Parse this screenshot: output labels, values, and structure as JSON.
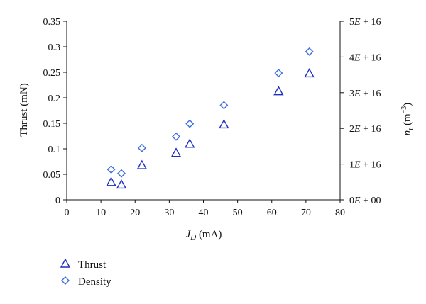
{
  "chart_data": {
    "type": "scatter",
    "x_axis": {
      "label_main": "J",
      "label_sub": "D",
      "label_rest": " (mA)",
      "range": [
        0,
        80
      ],
      "ticks": [
        "0",
        "10",
        "20",
        "30",
        "40",
        "50",
        "60",
        "70",
        "80"
      ]
    },
    "y_axis_left": {
      "label": "Thrust (mN)",
      "range": [
        0,
        0.35
      ],
      "ticks": [
        "0",
        "0.05",
        "0.1",
        "0.15",
        "0.2",
        "0.25",
        "0.3",
        "0.35"
      ]
    },
    "y_axis_right": {
      "label_main": "n",
      "label_sub": "i",
      "label_unit": " (m",
      "label_sup": "−3",
      "label_close": ")",
      "range": [
        0,
        5e+16
      ],
      "ticks": [
        "0E + 00",
        "1E + 16",
        "2E + 16",
        "3E + 16",
        "4E + 16",
        "5E + 16"
      ]
    },
    "series": [
      {
        "name": "Thrust",
        "axis": "left",
        "marker": "triangle",
        "color": "#1f2fbf",
        "x": [
          13,
          16,
          22,
          32,
          36,
          46,
          62,
          71
        ],
        "y": [
          0.035,
          0.03,
          0.068,
          0.092,
          0.11,
          0.148,
          0.213,
          0.248
        ]
      },
      {
        "name": "Density",
        "axis": "right",
        "marker": "diamond",
        "color": "#3d6fe0",
        "x": [
          13,
          16,
          22,
          32,
          36,
          46,
          62,
          71
        ],
        "y": [
          8500000000000000.0,
          7400000000000000.0,
          1.45e+16,
          1.77e+16,
          2.13e+16,
          2.65e+16,
          3.55e+16,
          4.15e+16
        ]
      }
    ],
    "legend_position": "bottom-left",
    "grid": false
  }
}
